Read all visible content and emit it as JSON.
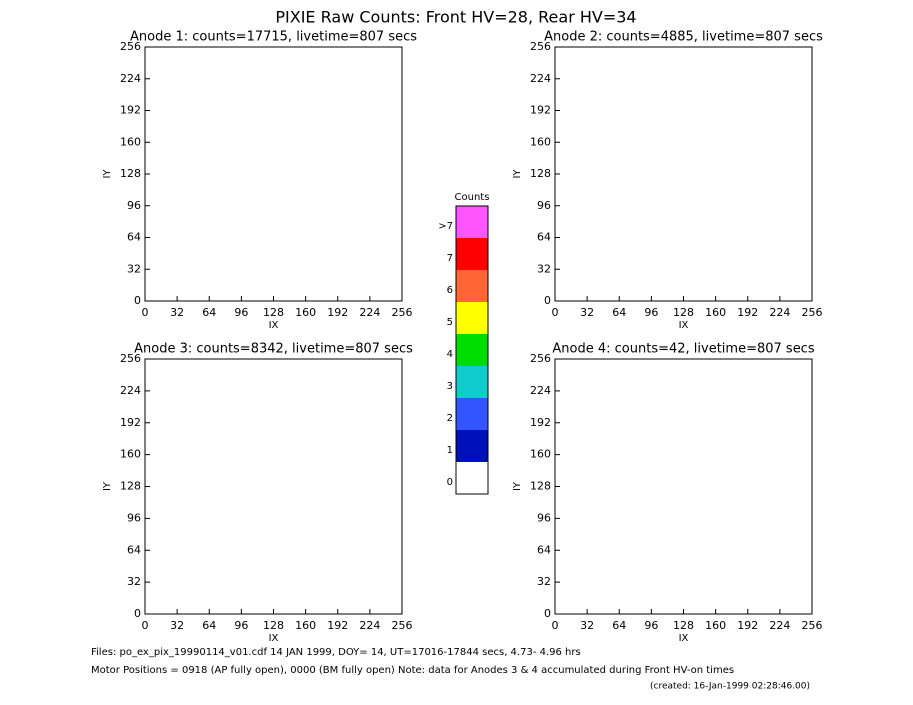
{
  "title": "PIXIE Raw Counts:  Front HV=28, Rear HV=34",
  "chart_data": [
    {
      "type": "image",
      "title": "Anode 1: counts=17715, livetime=807 secs",
      "xlabel": "IX",
      "ylabel": "IY",
      "xlim": [
        0,
        256
      ],
      "ylim": [
        0,
        256
      ],
      "xticks": [
        0,
        32,
        64,
        96,
        128,
        160,
        192,
        224,
        256
      ],
      "yticks": [
        0,
        32,
        64,
        96,
        128,
        160,
        192,
        224,
        256
      ]
    },
    {
      "type": "image",
      "title": "Anode 2: counts=4885, livetime=807 secs",
      "xlabel": "IX",
      "ylabel": "IY",
      "xlim": [
        0,
        256
      ],
      "ylim": [
        0,
        256
      ],
      "xticks": [
        0,
        32,
        64,
        96,
        128,
        160,
        192,
        224,
        256
      ],
      "yticks": [
        0,
        32,
        64,
        96,
        128,
        160,
        192,
        224,
        256
      ]
    },
    {
      "type": "image",
      "title": "Anode 3: counts=8342, livetime=807 secs",
      "xlabel": "IX",
      "ylabel": "IY",
      "xlim": [
        0,
        256
      ],
      "ylim": [
        0,
        256
      ],
      "xticks": [
        0,
        32,
        64,
        96,
        128,
        160,
        192,
        224,
        256
      ],
      "yticks": [
        0,
        32,
        64,
        96,
        128,
        160,
        192,
        224,
        256
      ]
    },
    {
      "type": "image",
      "title": "Anode 4: counts=42, livetime=807 secs",
      "xlabel": "IX",
      "ylabel": "IY",
      "xlim": [
        0,
        256
      ],
      "ylim": [
        0,
        256
      ],
      "xticks": [
        0,
        32,
        64,
        96,
        128,
        160,
        192,
        224,
        256
      ],
      "yticks": [
        0,
        32,
        64,
        96,
        128,
        160,
        192,
        224,
        256
      ]
    }
  ],
  "colorbar": {
    "title": "Counts",
    "levels": [
      ">7",
      "7",
      "6",
      "5",
      "4",
      "3",
      "2",
      "1",
      "0"
    ],
    "colors": [
      "#ff55ff",
      "#ff0000",
      "#ff6633",
      "#ffff00",
      "#00dd00",
      "#11cccc",
      "#3355ff",
      "#0011bb",
      "#ffffff"
    ]
  },
  "footer": {
    "files": "Files: po_ex_pix_19990114_v01.cdf    14 JAN 1999, DOY= 14, UT=17016-17844 secs,  4.73- 4.96 hrs",
    "motor": "Motor Positions = 0918 (AP fully open), 0000 (BM fully open)    Note: data for Anodes 3 & 4 accumulated during Front HV-on times",
    "created": "(created: 16-Jan-1999 02:28:46.00)"
  }
}
